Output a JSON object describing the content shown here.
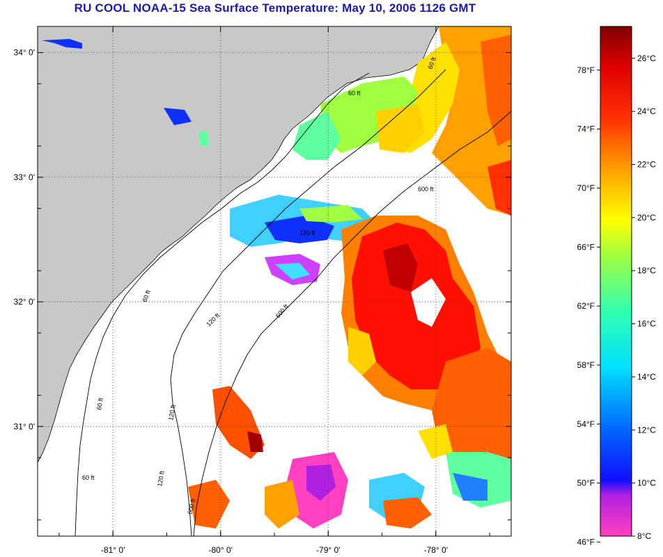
{
  "title": "RU COOL  NOAA-15  Sea Surface Temperature:  May 10, 2006 1126 GMT",
  "map": {
    "lon_range": [
      -81.7,
      -77.3
    ],
    "lat_range": [
      30.12,
      34.21
    ],
    "lat_ticks": [
      {
        "value": 34,
        "label": "34° 0'"
      },
      {
        "value": 33,
        "label": "33° 0'"
      },
      {
        "value": 32,
        "label": "32° 0'"
      },
      {
        "value": 31,
        "label": "31° 0'"
      }
    ],
    "lon_ticks": [
      {
        "value": -81,
        "label": "-81° 0'"
      },
      {
        "value": -80,
        "label": "-80° 0'"
      },
      {
        "value": -79,
        "label": "-79° 0'"
      },
      {
        "value": -78,
        "label": "-78° 0'"
      }
    ],
    "land_color": "#c8c8c8",
    "cloud_color": "#ffffff",
    "grid": "dotted",
    "contour_labels": [
      "60 ft",
      "120 ft",
      "600 ft"
    ]
  },
  "colorbar": {
    "range_c": [
      8,
      27.2
    ],
    "fahrenheit_labels": [
      {
        "value": 46,
        "label": "46°F"
      },
      {
        "value": 50,
        "label": "50°F"
      },
      {
        "value": 54,
        "label": "54°F"
      },
      {
        "value": 58,
        "label": "58°F"
      },
      {
        "value": 62,
        "label": "62°F"
      },
      {
        "value": 66,
        "label": "66°F"
      },
      {
        "value": 70,
        "label": "70°F"
      },
      {
        "value": 74,
        "label": "74°F"
      },
      {
        "value": 78,
        "label": "78°F"
      }
    ],
    "celsius_labels": [
      {
        "value": 8,
        "label": "8°C"
      },
      {
        "value": 10,
        "label": "10°C"
      },
      {
        "value": 12,
        "label": "12°C"
      },
      {
        "value": 14,
        "label": "14°C"
      },
      {
        "value": 16,
        "label": "16°C"
      },
      {
        "value": 18,
        "label": "18°C"
      },
      {
        "value": 20,
        "label": "20°C"
      },
      {
        "value": 22,
        "label": "22°C"
      },
      {
        "value": 24,
        "label": "24°C"
      },
      {
        "value": 26,
        "label": "26°C"
      }
    ],
    "colors": [
      "#ff40c0",
      "#a020f0",
      "#0000ff",
      "#00a0ff",
      "#00ffff",
      "#40ff80",
      "#ffff00",
      "#ff8000",
      "#ff0000",
      "#a00000"
    ]
  }
}
